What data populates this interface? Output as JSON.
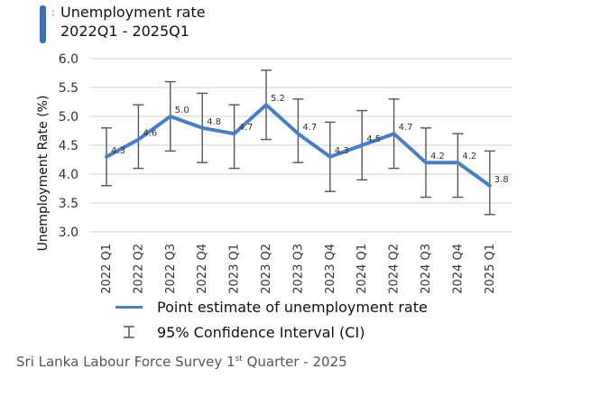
{
  "header": {
    "colon": ":",
    "title": "Unemployment rate",
    "subtitle": "2022Q1 - 2025Q1"
  },
  "colors": {
    "accent": "#3f6fae",
    "line": "#4a7ec2",
    "error_bar": "#555555",
    "grid": "#d0d0d0"
  },
  "chart_data": {
    "type": "line",
    "title": "Unemployment rate",
    "subtitle": "2022Q1 - 2025Q1",
    "xlabel": "",
    "ylabel": "Unemployment Rate (%)",
    "ylim": [
      3.0,
      6.0
    ],
    "yticks": [
      "3.0",
      "3.5",
      "4.0",
      "4.5",
      "5.0",
      "5.5",
      "6.0"
    ],
    "grid": true,
    "legend_position": "bottom",
    "categories": [
      "2022 Q1",
      "2022 Q2",
      "2022 Q3",
      "2022 Q4",
      "2023 Q1",
      "2023 Q2",
      "2023 Q3",
      "2023 Q4",
      "2024 Q1",
      "2024 Q2",
      "2024 Q3",
      "2024 Q4",
      "2025 Q1"
    ],
    "series": [
      {
        "name": "Point estimate of unemployment rate",
        "values": [
          4.3,
          4.6,
          5.0,
          4.8,
          4.7,
          5.2,
          4.7,
          4.3,
          4.5,
          4.7,
          4.2,
          4.2,
          3.8
        ],
        "labels": [
          "4.3",
          "4.6",
          "5.0",
          "4.8",
          "4.7",
          "5.2",
          "4.7",
          "4.3",
          "4.5",
          "4.7",
          "4.2",
          "4.2",
          "3.8"
        ]
      }
    ],
    "confidence_interval": {
      "name": "95% Confidence Interval (CI)",
      "lower": [
        3.8,
        4.1,
        4.4,
        4.2,
        4.1,
        4.6,
        4.2,
        3.7,
        3.9,
        4.1,
        3.6,
        3.6,
        3.3
      ],
      "upper": [
        4.8,
        5.2,
        5.6,
        5.4,
        5.2,
        5.8,
        5.3,
        4.9,
        5.1,
        5.3,
        4.8,
        4.7,
        4.4
      ]
    }
  },
  "legend": {
    "items": [
      {
        "label": "Point estimate of unemployment rate"
      },
      {
        "label": "95% Confidence Interval (CI)"
      }
    ]
  },
  "source": {
    "prefix": "Sri Lanka Labour Force Survey 1",
    "sup": "st",
    "suffix": " Quarter - 2025"
  }
}
